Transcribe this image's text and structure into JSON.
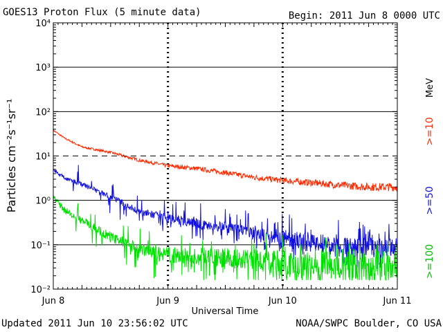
{
  "header": {
    "title": "GOES13 Proton Flux (5 minute data)",
    "begin": "Begin: 2011 Jun 8 0000 UTC"
  },
  "footer": {
    "updated": "Updated 2011 Jun 10 23:56:02 UTC",
    "credit": "NOAA/SWPC Boulder, CO USA"
  },
  "chart_data": {
    "type": "line",
    "title": "GOES13 Proton Flux (5 minute data)",
    "xlabel": "Universal Time",
    "ylabel": "Particles cm⁻²s⁻¹sr⁻¹",
    "yscale": "log",
    "ylim": [
      0.01,
      10000
    ],
    "y_tick_labels": [
      "10⁻²",
      "10⁻¹",
      "10⁰",
      "10¹",
      "10²",
      "10³",
      "10⁴"
    ],
    "x_tick_labels": [
      "Jun 8",
      "Jun 9",
      "Jun 10",
      "Jun 11"
    ],
    "x_range_days": [
      0,
      3
    ],
    "unit_label": "MeV",
    "colors": {
      "s10": "#ff2a00",
      "s50": "#1010e0",
      "s100": "#00e000",
      "threshold": "#000000"
    },
    "threshold_line": 10,
    "series": [
      {
        "name": ">=10",
        "color": "#ff2a00",
        "x": [
          0,
          0.1,
          0.25,
          0.5,
          0.75,
          1.0,
          1.25,
          1.5,
          1.75,
          2.0,
          2.25,
          2.5,
          2.75,
          3.0
        ],
        "values": [
          38,
          25,
          16,
          12,
          8,
          6,
          5.2,
          4.2,
          3.3,
          2.8,
          2.5,
          2.2,
          2.0,
          2.0
        ]
      },
      {
        "name": ">=50",
        "color": "#1010e0",
        "x": [
          0,
          0.1,
          0.25,
          0.5,
          0.75,
          1.0,
          1.25,
          1.5,
          1.75,
          2.0,
          2.25,
          2.5,
          2.75,
          3.0
        ],
        "values": [
          5,
          3.2,
          2.3,
          1.2,
          0.55,
          0.4,
          0.3,
          0.25,
          0.18,
          0.15,
          0.12,
          0.1,
          0.09,
          0.09
        ]
      },
      {
        "name": ">=100",
        "color": "#00e000",
        "x": [
          0,
          0.1,
          0.25,
          0.5,
          0.75,
          1.0,
          1.25,
          1.5,
          1.75,
          2.0,
          2.25,
          2.5,
          2.75,
          3.0
        ],
        "values": [
          1.2,
          0.6,
          0.35,
          0.15,
          0.08,
          0.06,
          0.055,
          0.05,
          0.045,
          0.04,
          0.04,
          0.035,
          0.035,
          0.035
        ]
      }
    ]
  }
}
